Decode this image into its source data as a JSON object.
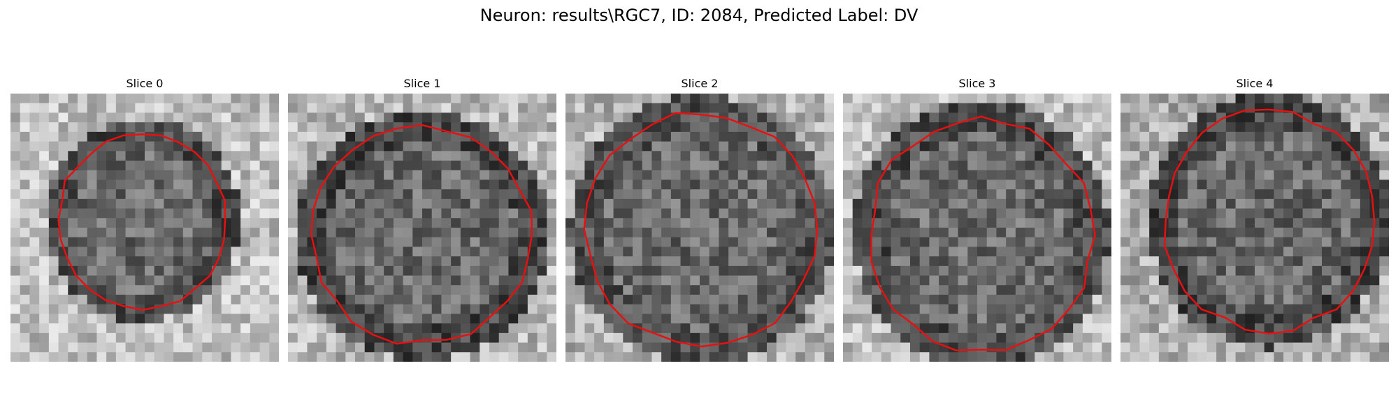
{
  "figure": {
    "title": "Neuron: results\\RGC7, ID: 2084, Predicted Label: DV"
  },
  "panels": [
    {
      "title": "Slice 0",
      "seed": 11,
      "outline_color": "#e81010"
    },
    {
      "title": "Slice 1",
      "seed": 23,
      "outline_color": "#e81010"
    },
    {
      "title": "Slice 2",
      "seed": 37,
      "outline_color": "#e81010"
    },
    {
      "title": "Slice 3",
      "seed": 51,
      "outline_color": "#e81010"
    },
    {
      "title": "Slice 4",
      "seed": 67,
      "outline_color": "#e81010"
    }
  ]
}
